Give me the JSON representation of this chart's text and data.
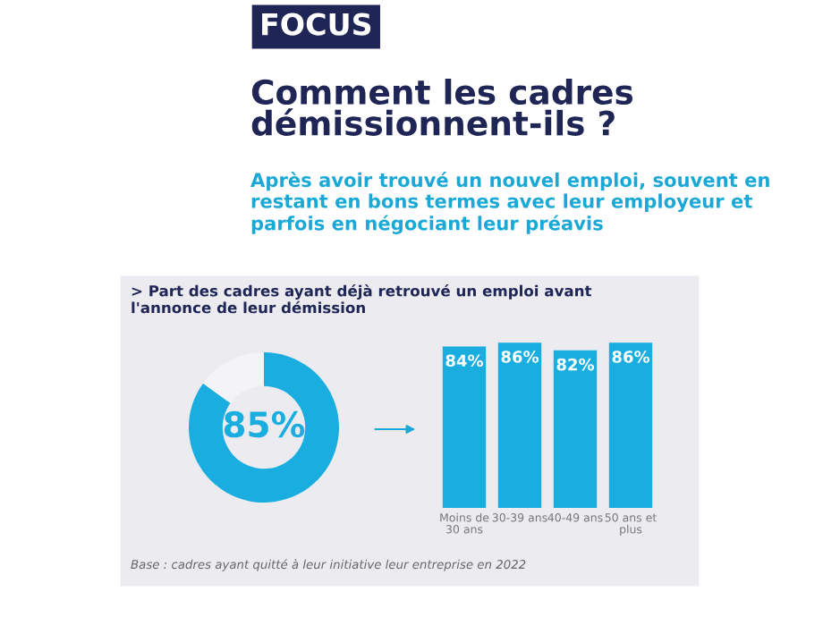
{
  "chart_data": [
    {
      "type": "donut",
      "title": "Comment les cadres démissionnent-ils ?",
      "subtitle": "Après avoir trouvé un nouvel emploi, souvent en restant en bons termes avec leur employeur et parfois en négociant leur préavis",
      "annotations": [
        "FOCUS",
        "> Part des cadres ayant déjà retrouvé un emploi avant l'annonce de leur démission",
        "Base : cadres ayant quitté à leur initiative leur entreprise en 2022"
      ],
      "categories": [
        null,
        null
      ],
      "values": [
        85,
        15
      ],
      "colors": [
        "#1aaee0",
        "#f4f4f8"
      ],
      "value_labels": [
        "85%",
        null
      ]
    },
    {
      "type": "bar",
      "categories": [
        "Moins de 30 ans",
        "30-39 ans",
        "40-49 ans",
        "50 ans et plus"
      ],
      "values": [
        84,
        86,
        82,
        86
      ],
      "color": "#1aaee0",
      "value_labels": [
        "84%",
        "86%",
        "82%",
        "86%"
      ],
      "tick_labels": "x"
    }
  ]
}
